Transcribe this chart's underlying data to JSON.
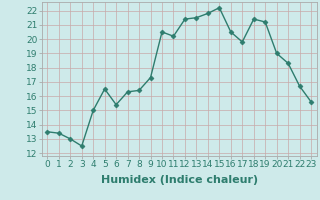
{
  "x": [
    0,
    1,
    2,
    3,
    4,
    5,
    6,
    7,
    8,
    9,
    10,
    11,
    12,
    13,
    14,
    15,
    16,
    17,
    18,
    19,
    20,
    21,
    22,
    23
  ],
  "y": [
    13.5,
    13.4,
    13.0,
    12.5,
    15.0,
    16.5,
    15.4,
    16.3,
    16.4,
    17.3,
    20.5,
    20.2,
    21.4,
    21.5,
    21.8,
    22.2,
    20.5,
    19.8,
    21.4,
    21.2,
    19.0,
    18.3,
    16.7,
    15.6
  ],
  "line_color": "#2e7d6e",
  "marker": "D",
  "marker_size": 2.5,
  "bg_color": "#ceeaea",
  "grid_color": "#b0d0d0",
  "xlabel": "Humidex (Indice chaleur)",
  "ylabel_ticks": [
    12,
    13,
    14,
    15,
    16,
    17,
    18,
    19,
    20,
    21,
    22
  ],
  "xlim": [
    -0.5,
    23.5
  ],
  "ylim": [
    11.8,
    22.6
  ],
  "xticks": [
    0,
    1,
    2,
    3,
    4,
    5,
    6,
    7,
    8,
    9,
    10,
    11,
    12,
    13,
    14,
    15,
    16,
    17,
    18,
    19,
    20,
    21,
    22,
    23
  ],
  "tick_fontsize": 6.5,
  "xlabel_fontsize": 8,
  "line_width": 1.0
}
